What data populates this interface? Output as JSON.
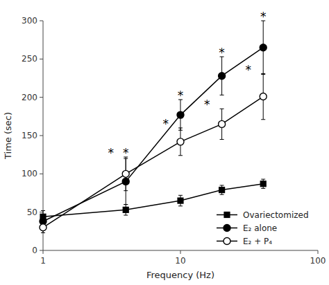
{
  "chart_data": {
    "type": "line",
    "xlabel": "Frequency (Hz)",
    "ylabel": "Time (sec)",
    "x": [
      1,
      4,
      10,
      20,
      40
    ],
    "series": [
      {
        "name": "Ovariectomized",
        "color": "#000000",
        "marker": "square",
        "values": [
          44,
          53,
          65,
          79,
          87
        ],
        "errors": [
          8,
          7,
          7,
          6,
          6
        ]
      },
      {
        "name": "E₂ alone",
        "color": "#000000",
        "marker": "circle",
        "values": [
          38,
          90,
          177,
          228,
          265
        ],
        "errors": [
          5,
          30,
          20,
          25,
          35
        ]
      },
      {
        "name": "E₂ + P₄",
        "color": "#000000",
        "marker": "open-circle",
        "values": [
          30,
          100,
          142,
          165,
          201
        ],
        "errors": [
          7,
          22,
          18,
          20,
          30
        ]
      }
    ],
    "annotations": [
      {
        "text": "*",
        "x": 4,
        "y": 130
      },
      {
        "text": "*",
        "x": 10,
        "y": 205
      },
      {
        "text": "*",
        "x": 20,
        "y": 261
      },
      {
        "text": "*",
        "x": 40,
        "y": 308
      },
      {
        "text": "*",
        "x": 3.12,
        "y": 130
      },
      {
        "text": "*",
        "x": 7.8,
        "y": 168
      },
      {
        "text": "*",
        "x": 15.6,
        "y": 193
      },
      {
        "text": "*",
        "x": 31.2,
        "y": 239
      }
    ],
    "xlim": [
      1,
      100
    ],
    "xticks": [
      1,
      10,
      100
    ],
    "ylim": [
      0,
      300
    ],
    "yticks": [
      0,
      50,
      100,
      150,
      200,
      250,
      300
    ],
    "log": "x",
    "grid": false,
    "legend": "lower right"
  }
}
